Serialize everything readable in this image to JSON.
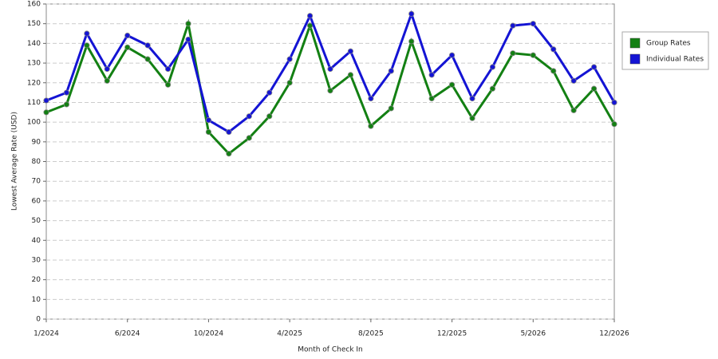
{
  "chart_data": {
    "type": "line",
    "x_label": "Month of Check In",
    "y_label": "Lowest Average Rate (USD)",
    "categories": [
      "1/2024",
      null,
      null,
      null,
      "6/2024",
      null,
      null,
      null,
      "10/2024",
      null,
      null,
      null,
      "4/2025",
      null,
      null,
      null,
      "8/2025",
      null,
      null,
      null,
      "12/2025",
      null,
      null,
      null,
      "5/2026",
      null,
      null,
      null,
      "12/2026"
    ],
    "series": [
      {
        "name": "Group Rates",
        "color": "#138013",
        "values": [
          105,
          109,
          139,
          121,
          138,
          132,
          119,
          150,
          95,
          84,
          92,
          103,
          120,
          149,
          116,
          124,
          98,
          107,
          141,
          112,
          119,
          102,
          117,
          135,
          134,
          126,
          106,
          117,
          99
        ]
      },
      {
        "name": "Individual Rates",
        "color": "#1414d4",
        "values": [
          111,
          115,
          145,
          127,
          144,
          139,
          127,
          142,
          101,
          95,
          103,
          115,
          132,
          154,
          127,
          136,
          112,
          126,
          155,
          124,
          134,
          112,
          128,
          149,
          150,
          137,
          121,
          128,
          110
        ]
      }
    ],
    "ylim": [
      0,
      160
    ],
    "yticks": [
      0,
      10,
      20,
      30,
      40,
      50,
      60,
      70,
      80,
      90,
      100,
      110,
      120,
      130,
      140,
      150,
      160
    ],
    "grid": true,
    "legend": "right"
  }
}
